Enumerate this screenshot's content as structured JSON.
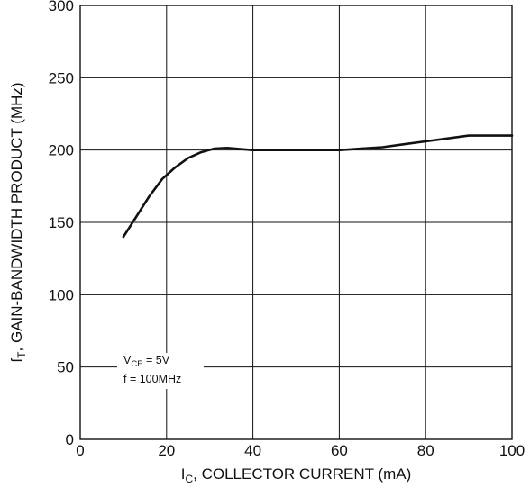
{
  "chart_data": {
    "type": "line",
    "xlabel": {
      "main": "I",
      "sub": "C",
      "rest": ", COLLECTOR CURRENT (mA)"
    },
    "ylabel": {
      "main": "f",
      "sub": "T",
      "rest": ", GAIN-BANDWIDTH PRODUCT (MHz)"
    },
    "xlim": [
      0,
      100
    ],
    "ylim": [
      0,
      300
    ],
    "x_ticks": [
      0,
      20,
      40,
      60,
      80,
      100
    ],
    "y_ticks": [
      0,
      50,
      100,
      150,
      200,
      250,
      300
    ],
    "grid": true,
    "series": [
      {
        "x": [
          10,
          13,
          16,
          19,
          22,
          25,
          28,
          31,
          34,
          38,
          40,
          45,
          50,
          55,
          60,
          65,
          70,
          75,
          80,
          85,
          90,
          95,
          100
        ],
        "y": [
          140,
          154,
          168,
          180,
          188,
          194.5,
          198.5,
          201,
          201.5,
          200.5,
          200,
          200,
          200,
          200,
          200,
          201,
          202,
          204,
          206,
          208,
          210,
          210,
          210
        ]
      }
    ],
    "annotation": {
      "line1_main": "V",
      "line1_sub": "CE",
      "line1_rest": " = 5V",
      "line2": "f = 100MHz"
    }
  }
}
